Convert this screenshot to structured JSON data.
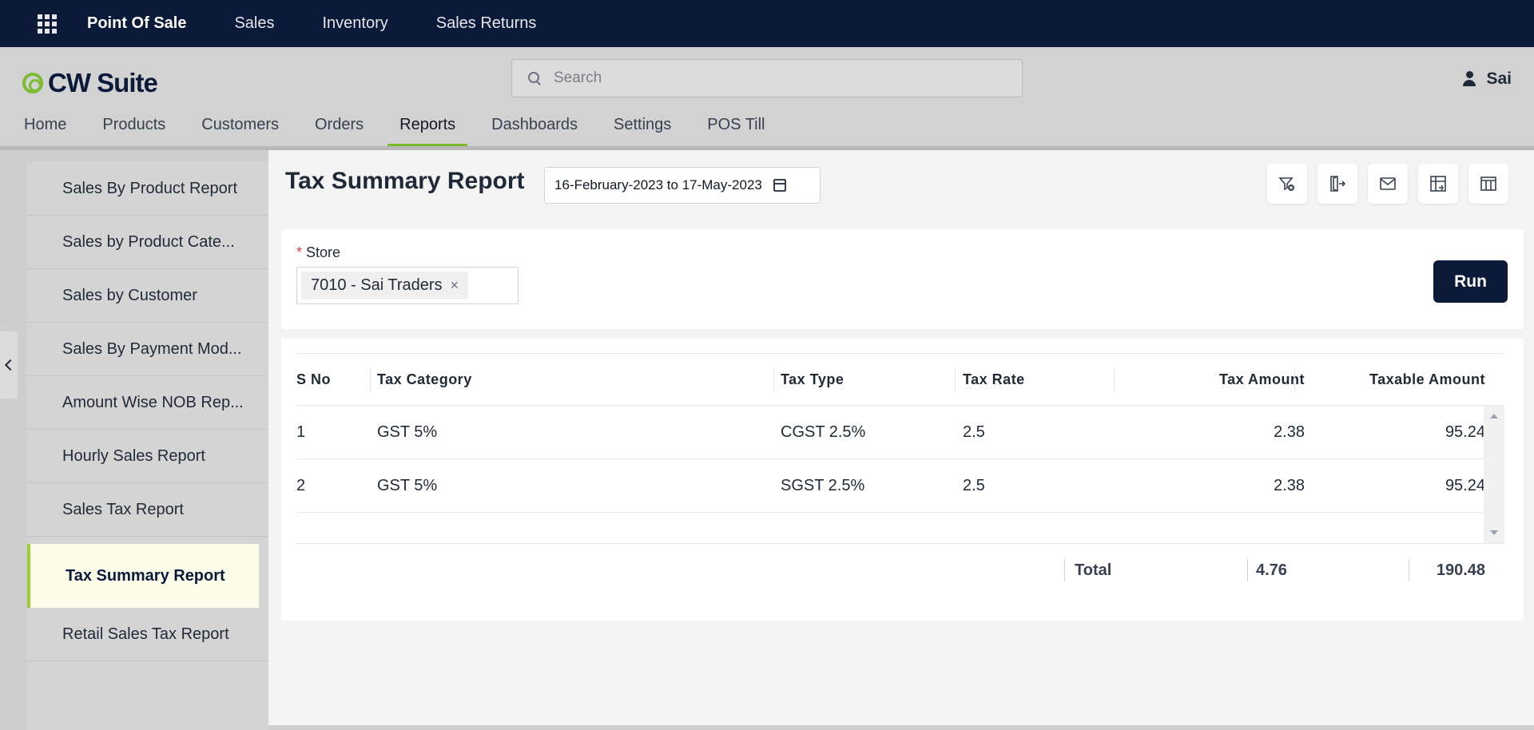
{
  "topbar": {
    "items": [
      {
        "label": "Point Of Sale",
        "active": true
      },
      {
        "label": "Sales",
        "active": false
      },
      {
        "label": "Inventory",
        "active": false
      },
      {
        "label": "Sales Returns",
        "active": false
      }
    ]
  },
  "header": {
    "logo_text": "CW Suite",
    "search_placeholder": "Search",
    "user_name": "Sai"
  },
  "nav": {
    "items": [
      {
        "label": "Home"
      },
      {
        "label": "Products"
      },
      {
        "label": "Customers"
      },
      {
        "label": "Orders"
      },
      {
        "label": "Reports",
        "active": true
      },
      {
        "label": "Dashboards"
      },
      {
        "label": "Settings"
      },
      {
        "label": "POS Till"
      }
    ]
  },
  "sidebar": {
    "items": [
      {
        "label": "Sales By Product Report"
      },
      {
        "label": "Sales by Product Cate..."
      },
      {
        "label": "Sales by Customer"
      },
      {
        "label": "Sales By Payment Mod..."
      },
      {
        "label": "Amount Wise NOB Rep..."
      },
      {
        "label": "Hourly Sales Report"
      },
      {
        "label": "Sales Tax Report"
      },
      {
        "label": "Tax Summary Report",
        "active": true
      },
      {
        "label": "Retail Sales Tax Report"
      }
    ]
  },
  "report": {
    "title": "Tax Summary Report",
    "date_range": "16-February-2023 to 17-May-2023",
    "tools": [
      "clear-filter-icon",
      "export-icon",
      "email-icon",
      "pivot-icon",
      "columns-icon"
    ]
  },
  "filter": {
    "store_label": "Store",
    "required_mark": "*",
    "store_value": "7010 - Sai Traders",
    "run_label": "Run"
  },
  "table": {
    "headers": [
      "S No",
      "Tax Category",
      "Tax Type",
      "Tax Rate",
      "Tax Amount",
      "Taxable Amount"
    ],
    "rows": [
      {
        "sno": "1",
        "category": "GST 5%",
        "type": "CGST 2.5%",
        "rate": "2.5",
        "amount": "2.38",
        "taxable": "95.24"
      },
      {
        "sno": "2",
        "category": "GST 5%",
        "type": "SGST 2.5%",
        "rate": "2.5",
        "amount": "2.38",
        "taxable": "95.24"
      }
    ],
    "total": {
      "label": "Total",
      "amount": "4.76",
      "taxable": "190.48"
    }
  }
}
